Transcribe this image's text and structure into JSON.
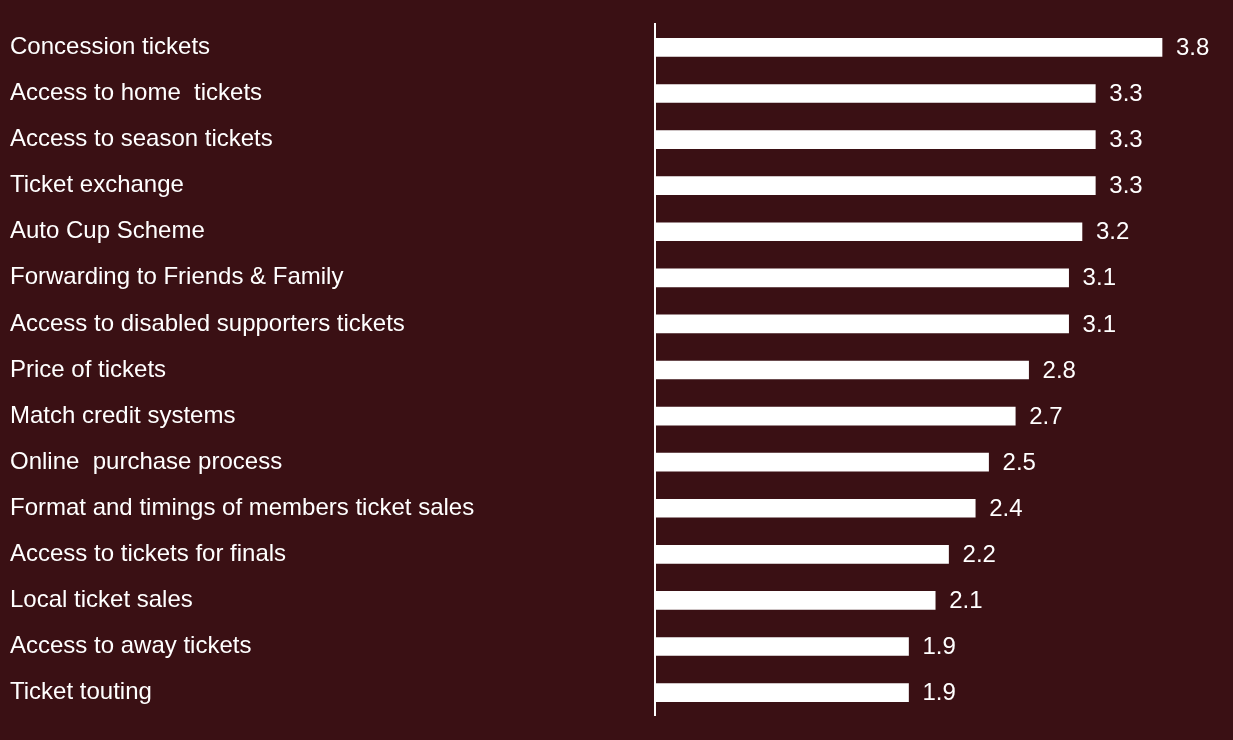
{
  "chart_data": {
    "type": "bar",
    "orientation": "horizontal",
    "categories": [
      "Concession tickets",
      "Access to home  tickets",
      "Access to season tickets",
      "Ticket exchange",
      "Auto Cup Scheme",
      "Forwarding to Friends & Family",
      "Access to disabled supporters tickets",
      "Price of tickets",
      "Match credit systems",
      "Online  purchase process",
      "Format and timings of members ticket sales",
      "Access to tickets for finals",
      "Local ticket sales",
      "Access to away tickets",
      "Ticket touting"
    ],
    "values": [
      3.8,
      3.3,
      3.3,
      3.3,
      3.2,
      3.1,
      3.1,
      2.8,
      2.7,
      2.5,
      2.4,
      2.2,
      2.1,
      1.9,
      1.9
    ],
    "color": "#ffffff",
    "data_labels": true
  }
}
